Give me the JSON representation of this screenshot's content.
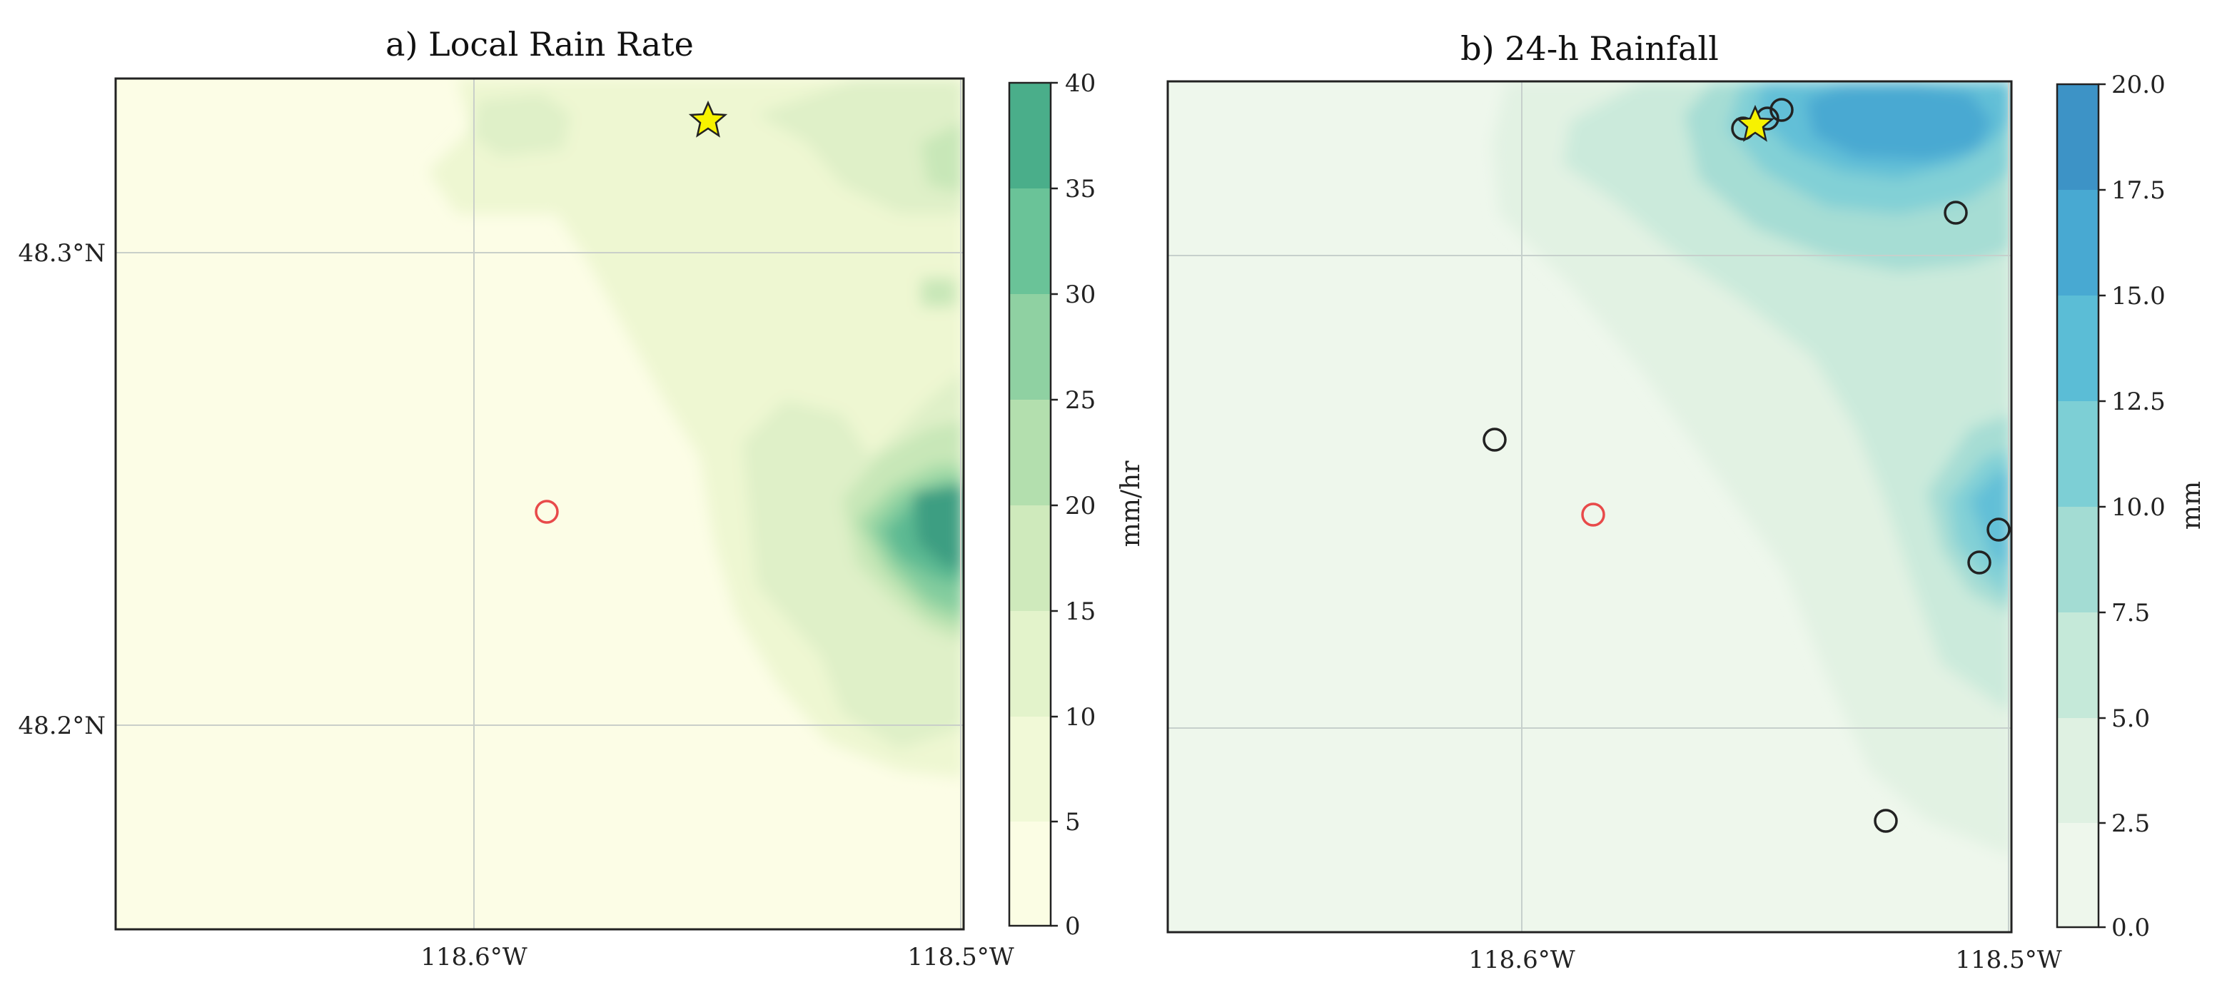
{
  "panels": [
    {
      "title": "a) Local Rain Rate",
      "yticks": [
        "48.3°N",
        "48.2°N"
      ],
      "xticks": [
        "118.6°W",
        "118.5°W"
      ],
      "colorbar": {
        "label": "mm/hr",
        "ticks": [
          "0",
          "5",
          "10",
          "15",
          "20",
          "25",
          "30",
          "35",
          "40"
        ],
        "colors": [
          "#fbfde4",
          "#f1f9d7",
          "#e3f3cb",
          "#cfeabc",
          "#b3dfae",
          "#8fd1a2",
          "#6ac398",
          "#4aae8a",
          "#3a8f7c"
        ]
      },
      "background": "#fcfde6"
    },
    {
      "title": "b) 24-h Rainfall",
      "yticks": [],
      "xticks": [
        "118.6°W",
        "118.5°W"
      ],
      "colorbar": {
        "label": "mm",
        "ticks": [
          "0.0",
          "2.5",
          "5.0",
          "7.5",
          "10.0",
          "12.5",
          "15.0",
          "17.5",
          "20.0"
        ],
        "colors": [
          "#eef7ec",
          "#dff1e2",
          "#c5e9d9",
          "#a3dcd3",
          "#7dcfd5",
          "#5bbdd6",
          "#48a9d2",
          "#3d93c6",
          "#3683b8"
        ]
      },
      "background": "#eef7ec"
    }
  ],
  "legend_colors": {
    "star": "#f7f200",
    "circle_red": "#e84a4a",
    "circle_black": "#222222"
  }
}
